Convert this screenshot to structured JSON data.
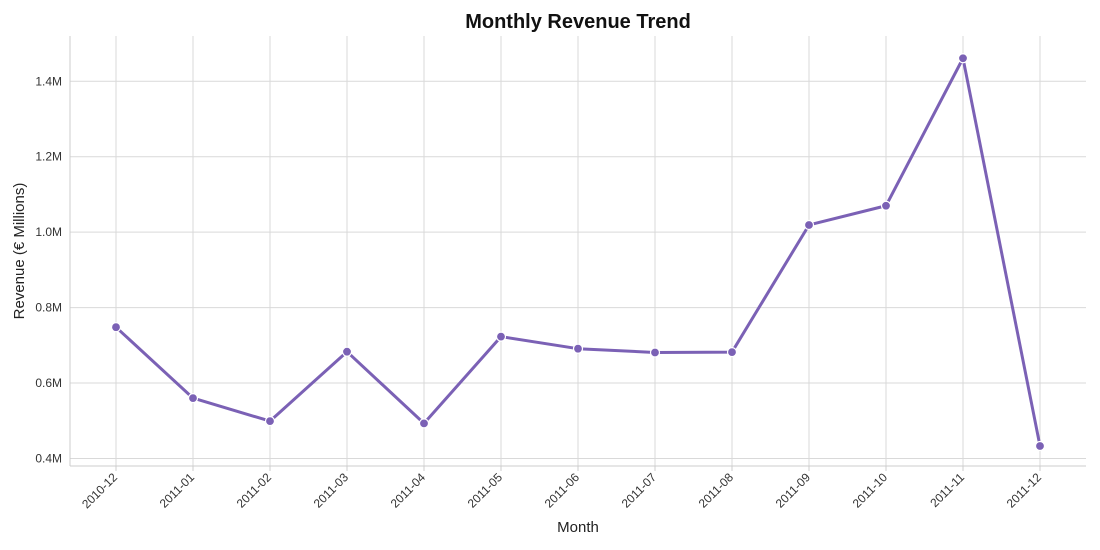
{
  "chart_data": {
    "type": "line",
    "title": "Monthly Revenue Trend",
    "xlabel": "Month",
    "ylabel": "Revenue (€ Millions)",
    "categories": [
      "2010-12",
      "2011-01",
      "2011-02",
      "2011-03",
      "2011-04",
      "2011-05",
      "2011-06",
      "2011-07",
      "2011-08",
      "2011-09",
      "2011-10",
      "2011-11",
      "2011-12"
    ],
    "series": [
      {
        "values": [
          0.748,
          0.56,
          0.499,
          0.683,
          0.493,
          0.723,
          0.691,
          0.681,
          0.682,
          1.019,
          1.07,
          1.461,
          0.433
        ],
        "color": "#7b61b5"
      }
    ],
    "ylim": [
      0.38,
      1.52
    ],
    "yticks": [
      0.4,
      0.6,
      0.8,
      1.0,
      1.2,
      1.4
    ],
    "ytick_labels": [
      "0.4M",
      "0.6M",
      "0.8M",
      "1.0M",
      "1.2M",
      "1.4M"
    ],
    "grid": true,
    "legend": "none"
  }
}
